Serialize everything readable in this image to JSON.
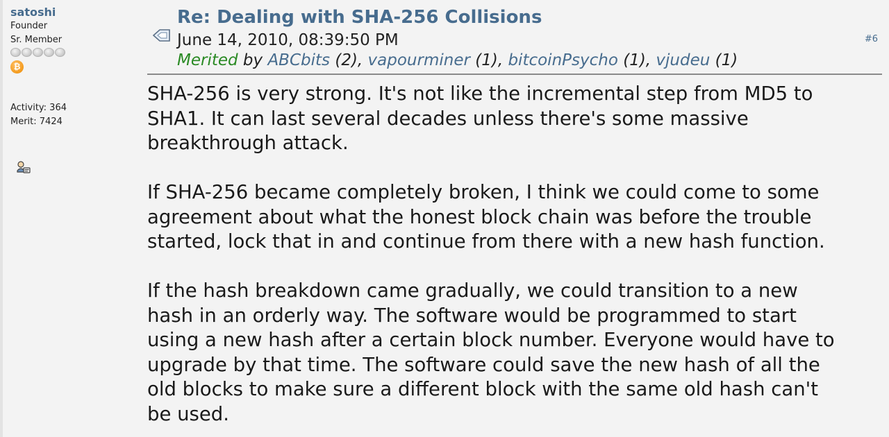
{
  "poster": {
    "name": "satoshi",
    "position": "Founder",
    "rank": "Sr. Member",
    "activity": "Activity: 364",
    "merit": "Merit: 7424",
    "coin_symbol": "₿"
  },
  "post": {
    "title": "Re: Dealing with SHA-256 Collisions",
    "date": "June 14, 2010, 08:39:50 PM",
    "number": "#6",
    "merited_label": "Merited",
    "merited_by": " by ",
    "merits": [
      {
        "user": "ABCbits",
        "count": " (2)"
      },
      {
        "user": "vapourminer",
        "count": " (1)"
      },
      {
        "user": "bitcoinPsycho",
        "count": " (1)"
      },
      {
        "user": "vjudeu",
        "count": " (1)"
      }
    ],
    "body": [
      "SHA-256 is very strong.  It's not like the incremental step from MD5 to\nSHA1.  It can last several decades unless there's some massive\nbreakthrough attack.",
      "If SHA-256 became completely broken, I think we could come to some\nagreement about what the honest block chain was before the trouble\nstarted, lock that in and continue from there with a new hash function.",
      "If the hash breakdown came gradually, we could transition to a new\nhash in an orderly way.  The software would be programmed to start\nusing a new hash after a certain block number.  Everyone would have to\nupgrade by that time.  The software could save the new hash of all the\nold blocks to make sure a different block with the same old hash can't\nbe used."
    ]
  },
  "icons": {
    "post_icon": "post-message-icon",
    "profile_icon": "profile-icon",
    "rank_icon": "rank-star-icon",
    "coin_icon": "bitcoin-coin-icon"
  },
  "colors": {
    "link": "#476c8e",
    "merited": "#2a8a24",
    "background": "#f3f3f3"
  }
}
